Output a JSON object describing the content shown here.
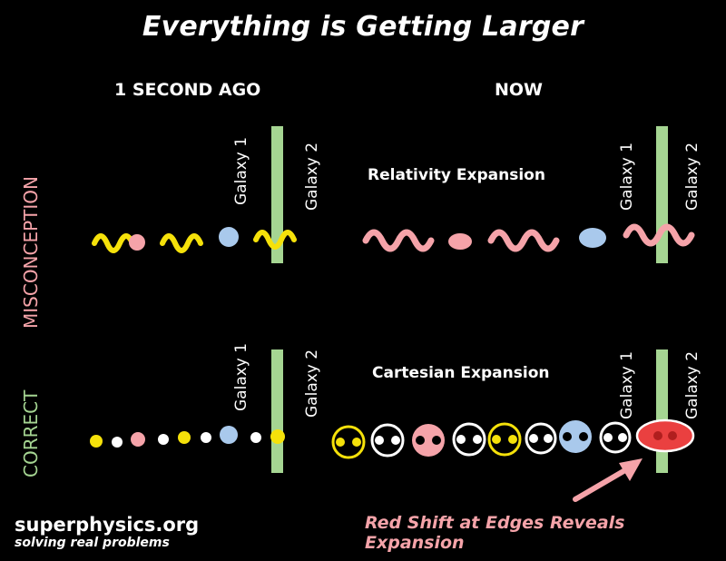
{
  "title": "Everything is Getting Larger",
  "columns": {
    "left": "1 SECOND AGO",
    "right": "NOW"
  },
  "rows": {
    "top": "MISCONCEPTION",
    "bottom": "CORRECT"
  },
  "galaxies": {
    "g1": "Galaxy 1",
    "g2": "Galaxy 2"
  },
  "subtitles": {
    "relativity": "Relativity Expansion",
    "cartesian": "Cartesian Expansion"
  },
  "footer": {
    "brand": "superphysics.org",
    "tagline": "solving real problems"
  },
  "annotation": "Red Shift at Edges Reveals Expansion",
  "colors": {
    "yellow": "#f5e10a",
    "pink": "#f5a3a9",
    "blue": "#a9c9ec",
    "green": "#a5d592",
    "red": "#ea4040",
    "misconception": "#f5a3a9",
    "correct": "#a5d592"
  }
}
